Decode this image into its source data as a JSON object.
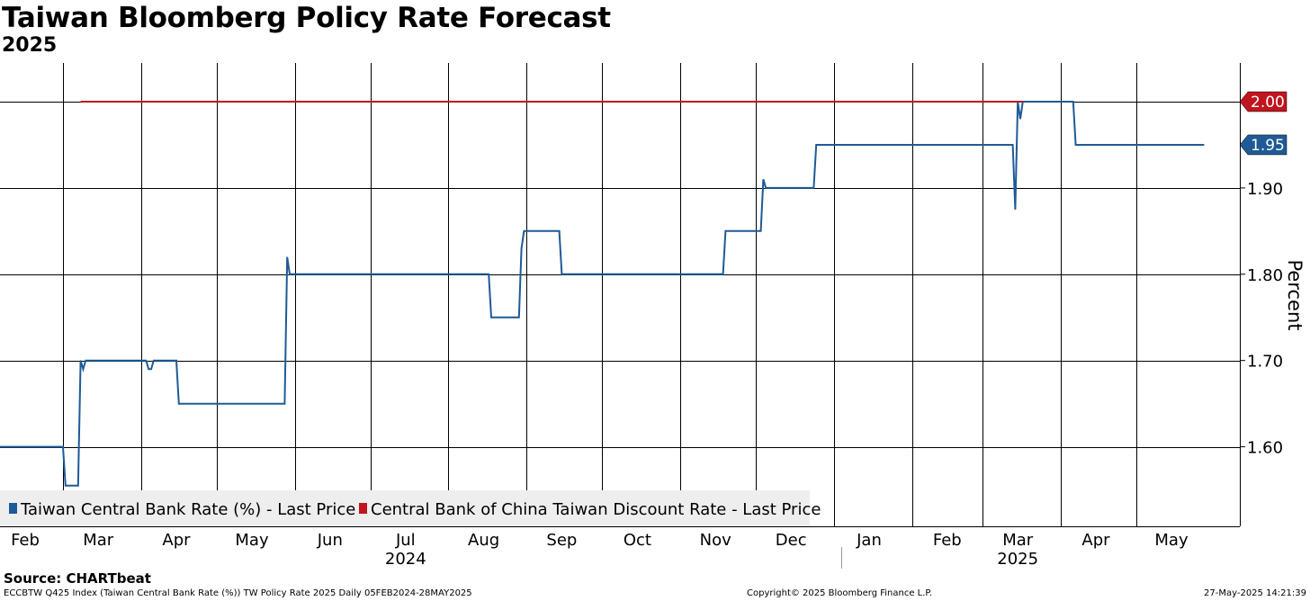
{
  "title": "Taiwan Bloomberg Policy Rate Forecast",
  "subtitle": "2025",
  "chart_data": {
    "type": "line",
    "title": "Taiwan Bloomberg Policy Rate Forecast",
    "subtitle": "2025",
    "xlabel": "",
    "ylabel": "Percent",
    "date_range": [
      "2024-02-05",
      "2025-05-28"
    ],
    "ylim": [
      1.54,
      2.045
    ],
    "yticks": [
      1.6,
      1.7,
      1.8,
      1.9
    ],
    "x_tick_labels": [
      "Feb",
      "Mar",
      "Apr",
      "May",
      "Jun",
      "Jul",
      "Aug",
      "Sep",
      "Oct",
      "Nov",
      "Dec",
      "Jan",
      "Feb",
      "Mar",
      "Apr",
      "May"
    ],
    "x_tick_dates": [
      "2024-02-15",
      "2024-03-15",
      "2024-04-15",
      "2024-05-15",
      "2024-06-15",
      "2024-07-15",
      "2024-08-15",
      "2024-09-15",
      "2024-10-15",
      "2024-11-15",
      "2024-12-15",
      "2025-01-15",
      "2025-02-15",
      "2025-03-15",
      "2025-04-15",
      "2025-05-15"
    ],
    "gridline_dates": [
      "2024-03-01",
      "2024-04-01",
      "2024-05-01",
      "2024-06-01",
      "2024-07-01",
      "2024-08-01",
      "2024-09-01",
      "2024-10-01",
      "2024-11-01",
      "2024-12-01",
      "2025-01-01",
      "2025-02-01",
      "2025-03-01",
      "2025-04-01",
      "2025-05-01"
    ],
    "year_labels": [
      {
        "label": "2024",
        "date": "2024-07-15"
      },
      {
        "label": "2025",
        "date": "2025-03-15"
      }
    ],
    "grid": true,
    "legend_position": "bottom-left",
    "series": [
      {
        "name": "Taiwan Central Bank Rate (%) - Last Price",
        "color": "#1f5a96",
        "last_value_label": "1.95",
        "points": [
          [
            "2024-02-05",
            1.6
          ],
          [
            "2024-03-01",
            1.6
          ],
          [
            "2024-03-02",
            1.555
          ],
          [
            "2024-03-07",
            1.555
          ],
          [
            "2024-03-08",
            1.7
          ],
          [
            "2024-03-09",
            1.69
          ],
          [
            "2024-03-10",
            1.7
          ],
          [
            "2024-04-03",
            1.7
          ],
          [
            "2024-04-04",
            1.69
          ],
          [
            "2024-04-05",
            1.69
          ],
          [
            "2024-04-06",
            1.7
          ],
          [
            "2024-04-15",
            1.7
          ],
          [
            "2024-04-16",
            1.65
          ],
          [
            "2024-05-28",
            1.65
          ],
          [
            "2024-05-29",
            1.82
          ],
          [
            "2024-05-30",
            1.8
          ],
          [
            "2024-08-17",
            1.8
          ],
          [
            "2024-08-18",
            1.75
          ],
          [
            "2024-08-29",
            1.75
          ],
          [
            "2024-08-30",
            1.83
          ],
          [
            "2024-08-31",
            1.85
          ],
          [
            "2024-09-14",
            1.85
          ],
          [
            "2024-09-15",
            1.8
          ],
          [
            "2024-11-18",
            1.8
          ],
          [
            "2024-11-19",
            1.85
          ],
          [
            "2024-12-03",
            1.85
          ],
          [
            "2024-12-04",
            1.91
          ],
          [
            "2024-12-05",
            1.9
          ],
          [
            "2024-12-24",
            1.9
          ],
          [
            "2024-12-25",
            1.95
          ],
          [
            "2025-03-13",
            1.95
          ],
          [
            "2025-03-14",
            1.875
          ],
          [
            "2025-03-15",
            2.0
          ],
          [
            "2025-03-16",
            1.98
          ],
          [
            "2025-03-17",
            2.0
          ],
          [
            "2025-04-06",
            2.0
          ],
          [
            "2025-04-07",
            1.95
          ],
          [
            "2025-05-28",
            1.95
          ]
        ]
      },
      {
        "name": "Central Bank of China Taiwan Discount Rate - Last Price",
        "color": "#c0151f",
        "last_value_label": "2.00",
        "points": [
          [
            "2024-03-08",
            2.0
          ],
          [
            "2025-03-17",
            2.0
          ]
        ]
      }
    ]
  },
  "footer": {
    "source": "Source: CHARTbeat",
    "left_note": "ECCBTW Q425 Index (Taiwan Central Bank Rate (%)) TW Policy Rate 2025  Daily 05FEB2024-28MAY2025",
    "copyright": "Copyright© 2025 Bloomberg Finance L.P.",
    "timestamp": "27-May-2025 14:21:39"
  }
}
